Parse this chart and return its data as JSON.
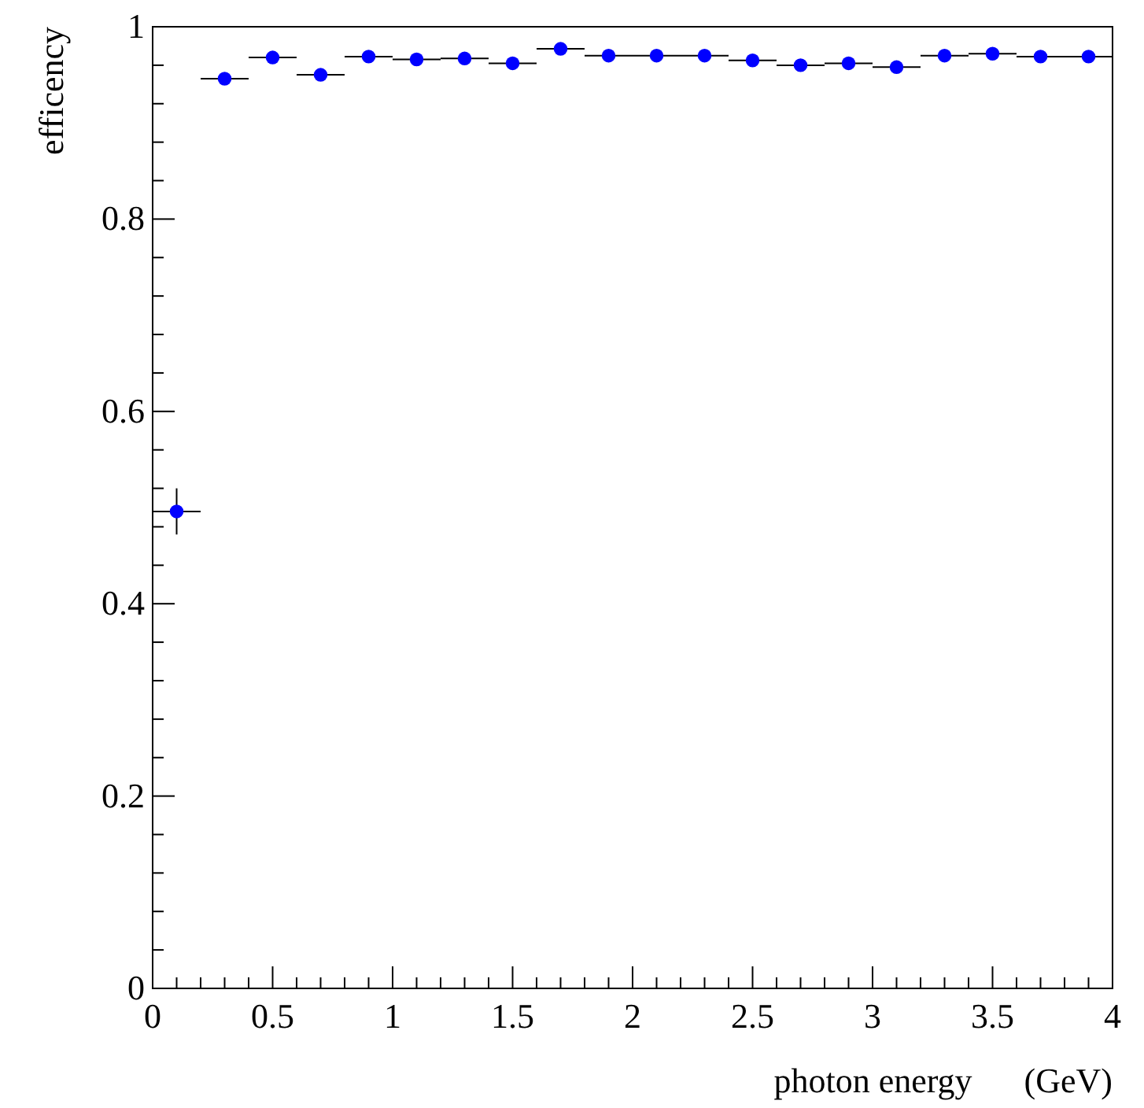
{
  "chart_data": {
    "type": "scatter",
    "xlabel": "photon energy      (GeV)",
    "ylabel": "efficency",
    "x": [
      0.1,
      0.3,
      0.5,
      0.7,
      0.9,
      1.1,
      1.3,
      1.5,
      1.7,
      1.9,
      2.1,
      2.3,
      2.5,
      2.7,
      2.9,
      3.1,
      3.3,
      3.5,
      3.7,
      3.9
    ],
    "series": [
      {
        "color": "#0000ff",
        "values": [
          0.496,
          0.946,
          0.968,
          0.95,
          0.969,
          0.966,
          0.967,
          0.962,
          0.977,
          0.97,
          0.97,
          0.97,
          0.965,
          0.96,
          0.962,
          0.958,
          0.97,
          0.972,
          0.969,
          0.969
        ],
        "errors": [
          0.024,
          null,
          null,
          null,
          null,
          null,
          null,
          null,
          null,
          null,
          null,
          null,
          null,
          null,
          null,
          null,
          null,
          null,
          null,
          null
        ],
        "xerrors": [
          0.1,
          0.1,
          0.1,
          0.1,
          0.1,
          0.1,
          0.1,
          0.1,
          0.1,
          0.1,
          0.1,
          0.1,
          0.1,
          0.1,
          0.1,
          0.1,
          0.1,
          0.1,
          0.1,
          0.1
        ]
      }
    ],
    "xlim": [
      0,
      4
    ],
    "xticks": [
      0,
      0.5,
      1,
      1.5,
      2,
      2.5,
      3,
      3.5,
      4
    ],
    "ylim": [
      0,
      1
    ],
    "yticks": [
      0,
      0.2,
      0.4,
      0.6,
      0.8,
      1
    ],
    "marker": "circle",
    "grid": false
  }
}
